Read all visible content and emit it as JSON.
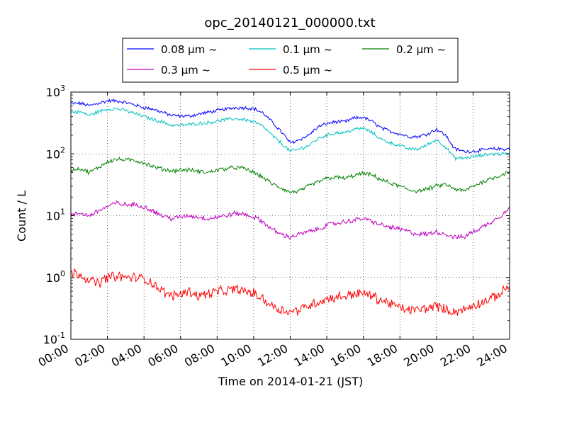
{
  "chart_data": {
    "type": "line",
    "title": "opc_20140121_000000.txt",
    "xlabel": "Time on 2014-01-21 (JST)",
    "ylabel": "Count / L",
    "yscale": "log",
    "ylim": [
      0.1,
      1000
    ],
    "xlim": [
      "00:00",
      "24:00"
    ],
    "grid": true,
    "legend_position": "top-center",
    "x_ticks": [
      "00:00",
      "02:00",
      "04:00",
      "06:00",
      "08:00",
      "10:00",
      "12:00",
      "14:00",
      "16:00",
      "18:00",
      "20:00",
      "22:00",
      "24:00"
    ],
    "y_ticks": [
      {
        "base": "10",
        "exp": "-1",
        "value": 0.1
      },
      {
        "base": "10",
        "exp": "0",
        "value": 1
      },
      {
        "base": "10",
        "exp": "1",
        "value": 10
      },
      {
        "base": "10",
        "exp": "2",
        "value": 100
      },
      {
        "base": "10",
        "exp": "3",
        "value": 1000
      }
    ],
    "x_hours": [
      0,
      0.5,
      1,
      1.5,
      2,
      2.5,
      3,
      3.5,
      4,
      4.5,
      5,
      5.5,
      6,
      6.5,
      7,
      7.5,
      8,
      8.5,
      9,
      9.5,
      10,
      10.5,
      11,
      11.5,
      12,
      12.5,
      13,
      13.5,
      14,
      14.5,
      15,
      15.5,
      16,
      16.5,
      17,
      17.5,
      18,
      18.5,
      19,
      19.5,
      20,
      20.5,
      21,
      21.5,
      22,
      22.5,
      23,
      23.5,
      24
    ],
    "series": [
      {
        "name": "0.08 μm ~",
        "color": "#0000ff",
        "values": [
          650,
          660,
          600,
          660,
          720,
          720,
          680,
          620,
          560,
          530,
          470,
          420,
          410,
          410,
          440,
          470,
          500,
          530,
          560,
          560,
          540,
          460,
          330,
          230,
          150,
          170,
          200,
          270,
          310,
          330,
          330,
          380,
          390,
          330,
          260,
          230,
          210,
          190,
          190,
          210,
          250,
          200,
          120,
          110,
          110,
          115,
          120,
          120,
          120
        ]
      },
      {
        "name": "0.1 μm ~",
        "color": "#00bfbf",
        "values": [
          470,
          480,
          420,
          480,
          530,
          540,
          500,
          450,
          400,
          360,
          330,
          290,
          290,
          300,
          310,
          320,
          340,
          360,
          370,
          360,
          330,
          280,
          200,
          150,
          110,
          120,
          135,
          175,
          200,
          220,
          220,
          250,
          260,
          220,
          170,
          150,
          135,
          120,
          120,
          140,
          170,
          130,
          85,
          85,
          90,
          95,
          100,
          100,
          100
        ]
      },
      {
        "name": "0.2 μm ~",
        "color": "#008000",
        "values": [
          55,
          58,
          50,
          60,
          75,
          82,
          80,
          78,
          72,
          62,
          57,
          53,
          55,
          55,
          52,
          50,
          55,
          58,
          60,
          58,
          50,
          42,
          33,
          28,
          24,
          25,
          30,
          35,
          40,
          42,
          40,
          45,
          48,
          45,
          38,
          33,
          30,
          26,
          25,
          27,
          30,
          32,
          27,
          25,
          30,
          35,
          40,
          45,
          52
        ]
      },
      {
        "name": "0.3 μm ~",
        "color": "#bf00bf",
        "values": [
          10,
          11,
          10,
          12,
          14,
          16,
          15,
          15,
          14,
          12,
          10,
          9,
          9.5,
          10,
          9.5,
          9,
          9.5,
          10,
          11,
          10.5,
          9.5,
          8,
          6,
          5,
          4.5,
          5,
          5.5,
          6,
          7,
          7.5,
          8,
          8.5,
          9,
          8,
          7,
          6.5,
          6,
          5.5,
          5,
          5,
          5.5,
          5,
          4.5,
          4.5,
          5.5,
          6.5,
          8,
          10,
          13
        ]
      },
      {
        "name": "0.5 μm ~",
        "color": "#ff0000",
        "values": [
          1.2,
          1.15,
          0.9,
          0.8,
          1.0,
          1.05,
          1.0,
          1.0,
          0.95,
          0.8,
          0.6,
          0.5,
          0.55,
          0.6,
          0.5,
          0.55,
          0.6,
          0.6,
          0.65,
          0.6,
          0.55,
          0.45,
          0.35,
          0.3,
          0.28,
          0.3,
          0.35,
          0.4,
          0.45,
          0.48,
          0.5,
          0.55,
          0.55,
          0.5,
          0.42,
          0.38,
          0.32,
          0.3,
          0.3,
          0.32,
          0.35,
          0.3,
          0.28,
          0.3,
          0.35,
          0.4,
          0.45,
          0.55,
          0.75
        ]
      }
    ]
  }
}
